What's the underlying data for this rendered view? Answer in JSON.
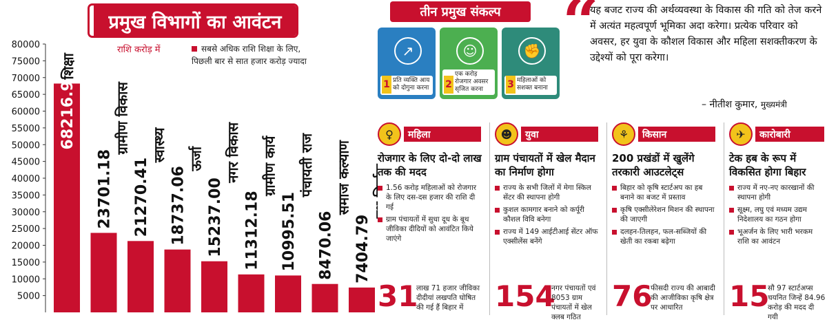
{
  "chart_data": {
    "type": "bar",
    "title": "प्रमुख विभागों का आवंटन",
    "ylabel": "राशि करोड़ में",
    "categories": [
      "शिक्षा",
      "ग्रामीण विकास",
      "स्वास्थ्य",
      "ऊर्जा",
      "नगर विकास",
      "ग्रामीण कार्य",
      "पंचायती राज",
      "समाज कल्याण",
      "पथ निर्माण"
    ],
    "values": [
      68216.95,
      23701.18,
      21270.41,
      18737.06,
      15237.0,
      11312.18,
      10995.51,
      8470.06,
      7404.79
    ],
    "value_labels": [
      "68216.95",
      "23701.18",
      "21270.41",
      "18737.06",
      "15237.00",
      "11312.18",
      "10995.51",
      "8470.06",
      "7404.79"
    ],
    "ylim": [
      0,
      80000
    ],
    "yticks": [
      5000,
      10000,
      15000,
      20000,
      25000,
      30000,
      35000,
      40000,
      45000,
      50000,
      55000,
      60000,
      65000,
      70000,
      75000,
      80000
    ],
    "grid": false,
    "bar_color": "#c8102e"
  },
  "chart_note": "सबसे अधिक राशि शिक्षा के लिए, पिछली बार से सात हजार करोड़ ज्यादा",
  "resolutions": {
    "title": "तीन प्रमुख संकल्प",
    "items": [
      {
        "num": "1",
        "label": "प्रति व्यक्ति आय को दोगुना करना",
        "icon": "chart-up-icon",
        "color": "#2a7fc1"
      },
      {
        "num": "2",
        "label": "एक करोड़ रोजगार अवसर सृजित करना",
        "icon": "people-icon",
        "color": "#4caf50"
      },
      {
        "num": "3",
        "label": "महिलाओं को सशक्त बनाना",
        "icon": "woman-fist-icon",
        "color": "#2e8b7a"
      }
    ]
  },
  "quote": {
    "text": "यह बजट राज्य की अर्थव्यवस्था के विकास की गति को तेज करने में अत्यंत महत्वपूर्ण भूमिका अदा करेगा। प्रत्येक परिवार को अवसर, हर युवा के कौशल विकास और महिला सशक्तीकरण के उद्देश्यों को पूरा करेगा।",
    "author": "– नीतीश कुमार,",
    "role": "मुख्यमंत्री"
  },
  "columns": [
    {
      "tag": "महिला",
      "icon": "woman-icon",
      "headline": "रोजगार के लिए दो-दो लाख तक की मदद",
      "bullets": [
        "1.56 करोड़ महिलाओं को रोजगार के लिए दस-दस हजार की राशि दी गई",
        "ग्राम पंचायतों में सुधा दूध के बूथ जीविका दीदियों को आवंटित किये जाएंगे"
      ],
      "stat": "31",
      "stat_text": "लाख 71 हजार जीविका दीदीयां लखपति घोषित की गई हैं बिहार में"
    },
    {
      "tag": "युवा",
      "icon": "youth-icon",
      "headline": "ग्राम पंचायतों में खेल मैदान का निर्माण होगा",
      "bullets": [
        "राज्य के सभी जिलों में मेगा स्किल सेंटर की स्थापना होगी",
        "कुशल कामगार बनाने को कर्पूरी कौशल विवि बनेगा",
        "राज्य में 149 आईटीआई सेंटर ऑफ एक्सीलेंस बनेंगे"
      ],
      "stat": "154",
      "stat_text": "नगर पंचायतों एवं 8053 ग्राम पंचायतों में खेल क्लब गठित"
    },
    {
      "tag": "किसान",
      "icon": "farmer-icon",
      "headline": "200 प्रखंडों में खुलेंगे तरकारी आउटलेट्स",
      "bullets": [
        "बिहार को कृषि स्टार्टअप का हब बनाने का बजट में प्रस्ताव",
        "कृषि एक्सीलेरेशन मिशन की स्थापना की जाएगी",
        "दलहन-तिलहन, फल-सब्जियों की खेती का रकबा बढ़ेगा"
      ],
      "stat": "76",
      "stat_text": "फीसदी राज्य की आबादी की आजीविका कृषि क्षेत्र पर आधारित"
    },
    {
      "tag": "कारोबारी",
      "icon": "business-icon",
      "headline": "टेक हब के रूप में विकसित होगा बिहार",
      "bullets": [
        "राज्य में नए-नए कारखानों की स्थापना होगी",
        "सूक्ष्म, लघु एवं मध्यम उद्यम निदेशालय का गठन होगा",
        "भूअर्जन के लिए भारी भरकम राशि का आवंटन"
      ],
      "stat": "15",
      "stat_text": "सौ 97 स्टार्टअप्स चयनित जिन्हें 84.96 करोड़ की मदद दी गयी"
    }
  ]
}
